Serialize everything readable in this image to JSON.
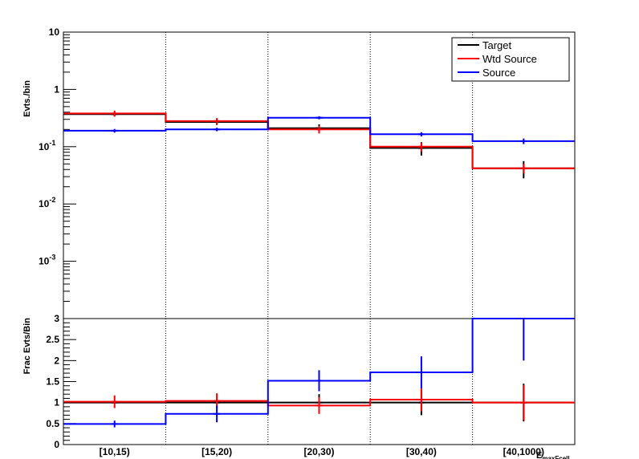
{
  "chart_data": [
    {
      "type": "line",
      "panel": "top",
      "ylabel": "Evts./bin",
      "yscale": "log",
      "ylim": [
        0.0001,
        10
      ],
      "ytick_labels": [
        {
          "base": "10",
          "exp": "",
          "value": 10
        },
        {
          "base": "1",
          "exp": "",
          "value": 1
        },
        {
          "base": "10",
          "exp": "-1",
          "value": 0.1
        },
        {
          "base": "10",
          "exp": "-2",
          "value": 0.01
        },
        {
          "base": "10",
          "exp": "-3",
          "value": 0.001
        }
      ],
      "categories": [
        "[10,15)",
        "[15,20)",
        "[20,30)",
        "[30,40)",
        "[40,1000)"
      ],
      "legend": {
        "placement": "top-right",
        "entries": [
          "Target",
          "Wtd Source",
          "Source"
        ]
      },
      "series": [
        {
          "name": "Target",
          "color": "#000000",
          "values": [
            0.37,
            0.27,
            0.21,
            0.095,
            0.042
          ],
          "errors": [
            0.03,
            0.03,
            0.035,
            0.025,
            0.014
          ]
        },
        {
          "name": "Wtd Source",
          "color": "#ff0000",
          "values": [
            0.38,
            0.28,
            0.2,
            0.1,
            0.042
          ],
          "errors": [
            0.045,
            0.035,
            0.03,
            0.018,
            0.008
          ]
        },
        {
          "name": "Source",
          "color": "#0000ff",
          "values": [
            0.19,
            0.2,
            0.32,
            0.165,
            0.125
          ],
          "errors": [
            0.014,
            0.014,
            0.02,
            0.014,
            0.014
          ]
        }
      ],
      "grid": "vertical dotted lines at bin edges"
    },
    {
      "type": "line",
      "panel": "bottom",
      "ylabel": "Frac Evts/Bin",
      "xlabel": "E_maxFcell",
      "ylim": [
        0,
        3
      ],
      "ytick_labels": [
        "0",
        "0.5",
        "1",
        "1.5",
        "2",
        "2.5",
        "3"
      ],
      "categories": [
        "[10,15)",
        "[15,20)",
        "[20,30)",
        "[30,40)",
        "[40,1000)"
      ],
      "series": [
        {
          "name": "Target",
          "color": "#000000",
          "values": [
            1.0,
            1.0,
            1.0,
            1.0,
            1.0
          ],
          "errors": [
            0.0,
            0.0,
            0.2,
            0.3,
            0.45
          ]
        },
        {
          "name": "Wtd Source",
          "color": "#ff0000",
          "values": [
            1.02,
            1.04,
            0.93,
            1.07,
            1.0
          ],
          "errors": [
            0.15,
            0.18,
            0.2,
            0.28,
            0.42
          ]
        },
        {
          "name": "Source",
          "color": "#0000ff",
          "values": [
            0.49,
            0.73,
            1.52,
            1.72,
            3.0
          ],
          "errors": [
            0.08,
            0.2,
            0.25,
            0.38,
            1.0
          ]
        }
      ],
      "grid": "vertical dotted lines at bin edges"
    }
  ]
}
